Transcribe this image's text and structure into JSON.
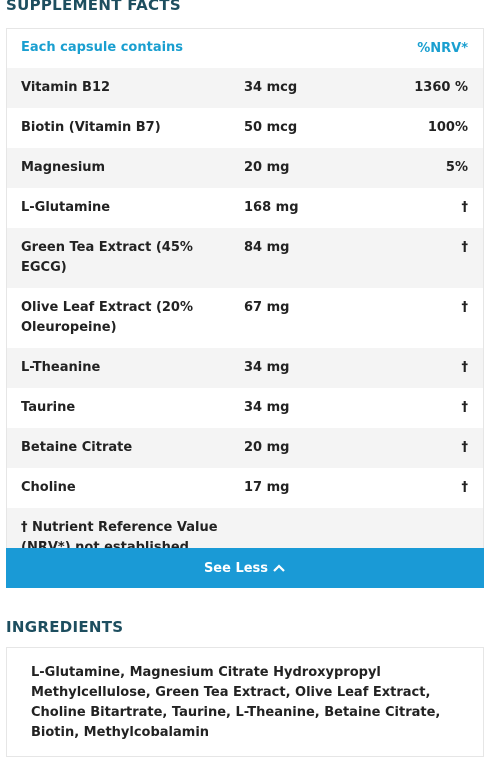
{
  "supplement_facts": {
    "title": "SUPPLEMENT FACTS",
    "header": [
      "Each capsule contains",
      "%NRV*"
    ],
    "rows": [
      [
        "Vitamin B12",
        "34 mcg",
        "1360 %"
      ],
      [
        "Biotin (Vitamin B7)",
        "50 mcg",
        "100%"
      ],
      [
        "Magnesium",
        "20 mg",
        "5%"
      ],
      [
        "L-Glutamine",
        "168 mg",
        "†"
      ],
      [
        "Green Tea Extract (45% EGCG)",
        "84 mg",
        "†"
      ],
      [
        "Olive Leaf Extract (20% Oleuropeine)",
        "67 mg",
        "†"
      ],
      [
        "L-Theanine",
        "34 mg",
        "†"
      ],
      [
        "Taurine",
        "34 mg",
        "†"
      ],
      [
        "Betaine Citrate",
        "20 mg",
        "†"
      ],
      [
        "Choline",
        "17 mg",
        "†"
      ]
    ],
    "footnote": "† Nutrient Reference Value (NRV*) not established",
    "button": "See Less"
  },
  "ingredients": {
    "title": "INGREDIENTS",
    "text": "L-Glutamine, Magnesium Citrate Hydroxypropyl Methylcellulose, Green Tea Extract, Olive Leaf Extract, Choline Bitartrate, Taurine, L-Theanine, Betaine Citrate, Biotin, Methylcobalamin"
  }
}
